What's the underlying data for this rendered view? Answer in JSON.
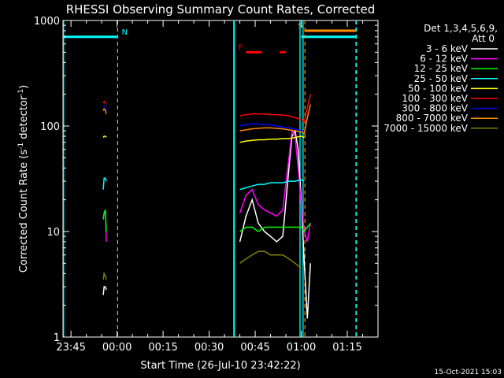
{
  "chart_data": {
    "type": "line",
    "title": "RHESSI Observing Summary Count Rates, Corrected",
    "xlabel": "Start Time (26-Jul-10 23:42:22)",
    "ylabel_main": "Corrected Count Rate (s",
    "ylabel_sup1": "-1",
    "ylabel_mid": " detector",
    "ylabel_sup2": "-1",
    "ylabel_end": ")",
    "yscale": "log",
    "ylim": [
      1,
      1000
    ],
    "xlim_minutes": [
      -17.6,
      85
    ],
    "y_tick_labels": [
      "1",
      "10",
      "100",
      "1000"
    ],
    "y_tick_values": [
      1,
      10,
      100,
      1000
    ],
    "x_tick_labels": [
      "23:45",
      "00:00",
      "00:15",
      "00:30",
      "00:45",
      "01:00",
      "01:15"
    ],
    "x_tick_values": [
      -15,
      0,
      15,
      30,
      45,
      60,
      75
    ],
    "footer_date": "15-Oct-2021 15:03",
    "legend_header": "Det 1,3,4,5,6,9,",
    "legend_att": "Att 0",
    "series": [
      {
        "name": "3 - 6 keV",
        "color": "#ffffff"
      },
      {
        "name": "6 - 12 keV",
        "color": "#ff00ff"
      },
      {
        "name": "12 - 25 keV",
        "color": "#00ff00"
      },
      {
        "name": "25 - 50 keV",
        "color": "#00ffff"
      },
      {
        "name": "50 - 100 keV",
        "color": "#ffff00"
      },
      {
        "name": "100 - 300 keV",
        "color": "#ff0000"
      },
      {
        "name": "300 - 800 keV",
        "color": "#0000ff"
      },
      {
        "name": "800 - 7000 keV",
        "color": "#ff8c00"
      },
      {
        "name": "7000 - 15000 keV",
        "color": "#808000"
      }
    ],
    "series_values": [
      {
        "x": [
          -4.5,
          -4.2,
          -3.8,
          -3.5,
          40,
          42,
          44,
          46,
          48,
          50,
          52,
          54,
          56,
          57,
          58,
          59,
          60,
          61,
          62,
          63
        ],
        "y": [
          2.5,
          3,
          3,
          2.8,
          8,
          14,
          20,
          12,
          10,
          9,
          8,
          9,
          40,
          80,
          90,
          60,
          20,
          5,
          1.5,
          5
        ]
      },
      {
        "x": [
          -4.5,
          -4.2,
          -3.8,
          -3.5,
          40,
          42,
          44,
          46,
          48,
          50,
          52,
          54,
          56,
          57,
          58,
          59,
          60,
          61,
          62,
          63
        ],
        "y": [
          13,
          15,
          16,
          8,
          15,
          22,
          25,
          18,
          16,
          15,
          14,
          16,
          50,
          90,
          80,
          40,
          18,
          10,
          8,
          12
        ]
      },
      {
        "x": [
          -4.5,
          -4.2,
          -3.8,
          -3.5,
          40,
          42,
          44,
          46,
          48,
          50,
          52,
          54,
          56,
          58,
          60,
          61,
          62,
          63
        ],
        "y": [
          13,
          15,
          16,
          10,
          10,
          11,
          11,
          10,
          11,
          11,
          11,
          11,
          11,
          11,
          11,
          10,
          11,
          12
        ]
      },
      {
        "x": [
          -4.5,
          -4.2,
          -3.8,
          -3.5,
          40,
          42,
          44,
          46,
          48,
          50,
          52,
          54,
          56,
          58,
          60,
          61
        ],
        "y": [
          25,
          32,
          32,
          30,
          25,
          26,
          27,
          28,
          28,
          29,
          29,
          29,
          30,
          30,
          31,
          30
        ]
      },
      {
        "x": [
          -4.5,
          -4.2,
          -3.8,
          -3.5,
          40,
          42,
          44,
          46,
          48,
          50,
          52,
          54,
          56,
          58,
          60,
          61
        ],
        "y": [
          78,
          80,
          80,
          78,
          70,
          72,
          73,
          74,
          74,
          75,
          75,
          76,
          76,
          78,
          80,
          78
        ]
      },
      {
        "x": [
          -4.5,
          -4.2,
          -3.8,
          -3.5,
          40,
          42,
          44,
          46,
          48,
          50,
          52,
          54,
          56,
          58,
          60,
          61,
          62,
          63
        ],
        "y": [
          165,
          170,
          165,
          160,
          125,
          128,
          130,
          130,
          130,
          128,
          128,
          127,
          125,
          120,
          115,
          110,
          150,
          200
        ]
      },
      {
        "x": [
          -4.5,
          -4.2,
          -3.8,
          -3.5,
          40,
          42,
          44,
          46,
          48,
          50,
          52,
          54,
          56,
          58,
          60,
          61
        ],
        "y": [
          150,
          155,
          150,
          140,
          100,
          103,
          105,
          105,
          103,
          102,
          100,
          98,
          96,
          93,
          90,
          88
        ]
      },
      {
        "x": [
          -4.5,
          -4.2,
          -3.8,
          -3.5,
          40,
          42,
          44,
          46,
          48,
          50,
          52,
          54,
          56,
          58,
          60,
          61,
          62,
          63
        ],
        "y": [
          140,
          145,
          140,
          130,
          90,
          92,
          94,
          95,
          96,
          96,
          95,
          94,
          92,
          90,
          88,
          85,
          120,
          160
        ]
      },
      {
        "x": [
          -4.5,
          -4.2,
          -3.8,
          -3.5,
          40,
          42,
          44,
          46,
          48,
          50,
          52,
          54,
          56,
          58,
          60
        ],
        "y": [
          3.5,
          4,
          3.8,
          3.5,
          5,
          5.5,
          6,
          6.5,
          6.5,
          6,
          6,
          6,
          5.5,
          5,
          4.5
        ]
      }
    ],
    "flags": [
      {
        "label": "N",
        "color": "#00ffff",
        "start": -17.6,
        "end": 0,
        "level": 700
      },
      {
        "label": "F",
        "color": "#ff0000",
        "start": 42,
        "end": 47,
        "level": 500
      },
      {
        "label": "",
        "color": "#ff0000",
        "start": 53,
        "end": 55,
        "level": 500
      },
      {
        "label": "S",
        "color": "#ff8c00",
        "start": 61,
        "end": 78,
        "level": 800
      },
      {
        "label": "",
        "color": "#00ffff",
        "start": 60,
        "end": 78,
        "level": 700
      }
    ],
    "vlines_solid": [
      {
        "x": -17.4,
        "color": "#00ffff"
      },
      {
        "x": 38,
        "color": "#ff8c00"
      },
      {
        "x": 38.2,
        "color": "#00ffff"
      },
      {
        "x": 59.6,
        "color": "#00ffff"
      },
      {
        "x": 60.6,
        "color": "#00ffff"
      }
    ],
    "vlines_dashed": [
      {
        "x": 0.2,
        "color": "#00ffff"
      },
      {
        "x": 61.2,
        "color": "#ff8c00"
      },
      {
        "x": 77.8,
        "color": "#ff8c00"
      },
      {
        "x": 78,
        "color": "#00ffff"
      }
    ]
  }
}
